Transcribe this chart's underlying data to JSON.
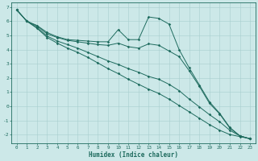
{
  "xlabel": "Humidex (Indice chaleur)",
  "ylabel": "",
  "bg_color": "#cce8e8",
  "line_color": "#1e6b5e",
  "xlim": [
    -0.5,
    23.5
  ],
  "ylim": [
    -2.6,
    7.3
  ],
  "yticks": [
    -2,
    -1,
    0,
    1,
    2,
    3,
    4,
    5,
    6,
    7
  ],
  "xticks": [
    0,
    1,
    2,
    3,
    4,
    5,
    6,
    7,
    8,
    9,
    10,
    11,
    12,
    13,
    14,
    15,
    16,
    17,
    18,
    19,
    20,
    21,
    22,
    23
  ],
  "line1_x": [
    0,
    1,
    2,
    3,
    4,
    5,
    6,
    7,
    8,
    9,
    10,
    11,
    12,
    13,
    14,
    15,
    16,
    17,
    18,
    19,
    20,
    21,
    22,
    23
  ],
  "line1_y": [
    6.8,
    6.0,
    5.7,
    5.2,
    4.9,
    4.7,
    4.65,
    4.6,
    4.55,
    4.55,
    5.4,
    4.7,
    4.7,
    6.3,
    6.2,
    5.8,
    4.0,
    2.7,
    1.5,
    0.3,
    -0.5,
    -1.5,
    -2.1,
    -2.3
  ],
  "line2_x": [
    0,
    1,
    2,
    3,
    4,
    5,
    6,
    7,
    8,
    9,
    10,
    11,
    12,
    13,
    14,
    15,
    16,
    17,
    18,
    19,
    20,
    21,
    22,
    23
  ],
  "line2_y": [
    6.8,
    6.0,
    5.65,
    5.1,
    4.85,
    4.65,
    4.55,
    4.45,
    4.35,
    4.3,
    4.45,
    4.2,
    4.1,
    4.4,
    4.3,
    3.9,
    3.5,
    2.5,
    1.4,
    0.2,
    -0.55,
    -1.55,
    -2.1,
    -2.3
  ],
  "line3_x": [
    0,
    1,
    2,
    3,
    4,
    5,
    6,
    7,
    8,
    9,
    10,
    11,
    12,
    13,
    14,
    15,
    16,
    17,
    18,
    19,
    20,
    21,
    22,
    23
  ],
  "line3_y": [
    6.8,
    6.0,
    5.55,
    4.95,
    4.6,
    4.35,
    4.1,
    3.8,
    3.5,
    3.2,
    2.95,
    2.65,
    2.4,
    2.1,
    1.9,
    1.55,
    1.1,
    0.5,
    -0.05,
    -0.6,
    -1.1,
    -1.7,
    -2.1,
    -2.3
  ],
  "line4_x": [
    0,
    1,
    2,
    3,
    4,
    5,
    6,
    7,
    8,
    9,
    10,
    11,
    12,
    13,
    14,
    15,
    16,
    17,
    18,
    19,
    20,
    21,
    22,
    23
  ],
  "line4_y": [
    6.8,
    6.0,
    5.5,
    4.85,
    4.45,
    4.1,
    3.8,
    3.45,
    3.05,
    2.65,
    2.3,
    1.9,
    1.55,
    1.2,
    0.9,
    0.5,
    0.05,
    -0.4,
    -0.85,
    -1.3,
    -1.7,
    -2.0,
    -2.15,
    -2.3
  ]
}
